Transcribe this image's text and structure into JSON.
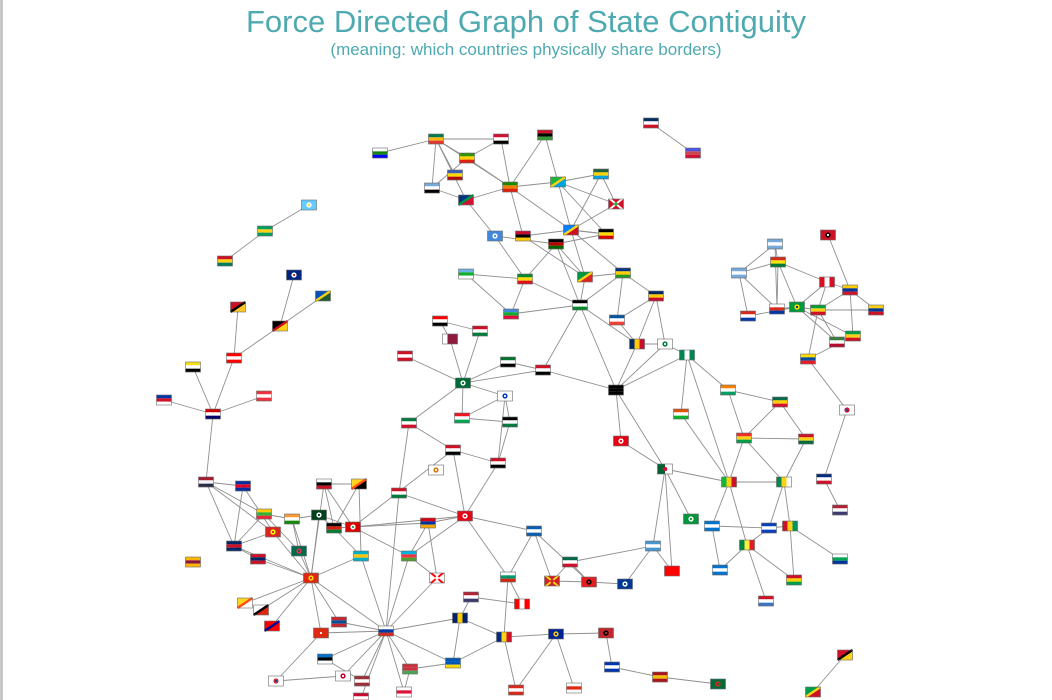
{
  "page": {
    "title": "Force Directed Graph of State Contiguity",
    "subtitle": "(meaning: which countries physically share borders)"
  },
  "colors": {
    "title": "#4eaab0",
    "edge": "#8f8f8f",
    "background": "#ffffff"
  },
  "graph": {
    "node_icon": "country-flag-icon",
    "clusters": [
      {
        "name": "southern-africa",
        "members": [
          "Lesotho",
          "South Africa",
          "Mozambique",
          "Malawi",
          "Zimbabwe",
          "Swaziland",
          "Botswana",
          "Namibia",
          "Zambia",
          "Tanzania",
          "Rwanda",
          "Burundi",
          "Uganda",
          "Kenya",
          "Democratic Republic of the Congo",
          "Angola",
          "Somalia",
          "Djibouti",
          "Ethiopia",
          "Eritrea",
          "South Sudan",
          "Central African Republic",
          "Republic of the Congo"
        ]
      },
      {
        "name": "caribbean-small",
        "members": [
          "Dominican Republic",
          "Haiti"
        ]
      },
      {
        "name": "south-america",
        "members": [
          "Argentina",
          "Uruguay",
          "Bolivia",
          "Chile",
          "Paraguay",
          "Brazil",
          "Peru",
          "Trinidad and Tobago",
          "Venezuela",
          "Colombia",
          "Guyana",
          "Suriname",
          "Ecuador",
          "French Guiana"
        ]
      },
      {
        "name": "oceania-se-asia",
        "members": [
          "Saint Lucia",
          "Saint Vincent",
          "Grenada",
          "Australia",
          "Solomon Islands",
          "Papua New Guinea",
          "Timor-Leste",
          "Indonesia",
          "Brunei",
          "Singapore",
          "Philippines",
          "Malaysia"
        ]
      },
      {
        "name": "middle-east-asia-europe",
        "members": [
          "Saudi Arabia",
          "Oman",
          "Yemen",
          "UAE",
          "Qatar",
          "Bahrain",
          "Kuwait",
          "Iraq",
          "Iran",
          "Syria",
          "Israel",
          "Jordan",
          "Egypt",
          "Libya",
          "Turkey",
          "Cyprus",
          "Greece",
          "Russia",
          "China",
          "India",
          "Pakistan",
          "Afghanistan",
          "Kazakhstan",
          "Mongolia",
          "Ukraine",
          "Romania",
          "Moldova",
          "Serbia",
          "Croatia",
          "Georgia",
          "Armenia",
          "Azerbaijan",
          "Thailand",
          "Cambodia",
          "Laos",
          "Vietnam",
          "Myanmar",
          "Bangladesh",
          "Nepal",
          "Bhutan",
          "Sri Lanka",
          "Taiwan",
          "Hong Kong",
          "Japan",
          "South Korea",
          "North Korea",
          "Estonia",
          "Latvia",
          "Belarus",
          "Lithuania",
          "Poland",
          "Spain",
          "Portugal",
          "Andorra"
        ]
      },
      {
        "name": "west-africa-americas",
        "members": [
          "Chad",
          "Niger",
          "Nigeria",
          "Cameroon",
          "Sudan",
          "Tunisia",
          "Algeria",
          "Morocco",
          "Mauritania",
          "Mali",
          "Burkina Faso",
          "Ghana",
          "Togo",
          "Benin",
          "Ivory Coast",
          "Liberia",
          "Sierra Leone",
          "Guinea",
          "Guinea-Bissau",
          "Senegal",
          "Gambia",
          "Panama",
          "Costa Rica",
          "Nicaragua",
          "Honduras",
          "Guatemala",
          "El Salvador",
          "Mexico",
          "USA",
          "Canada",
          "Antigua",
          "Saint Kitts"
        ]
      }
    ]
  }
}
